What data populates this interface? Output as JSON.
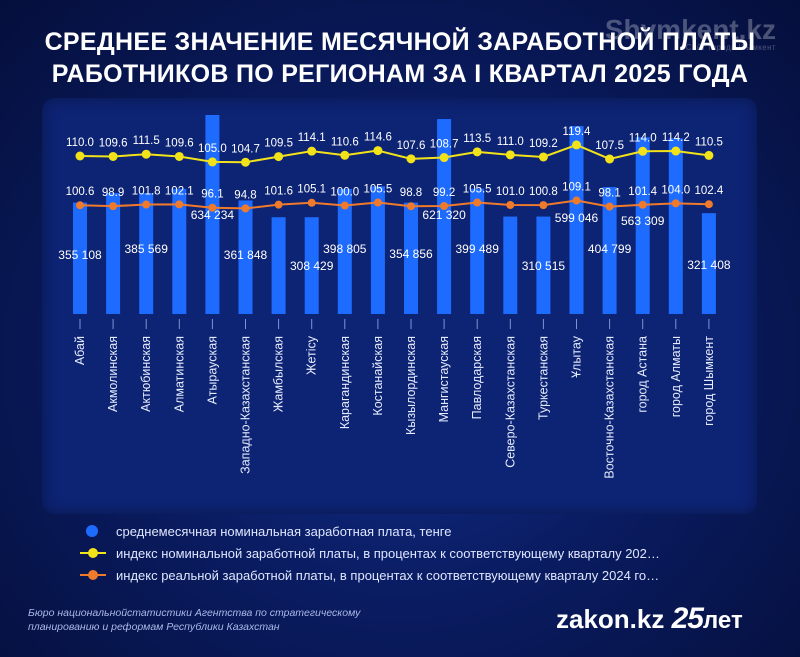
{
  "title": {
    "line1": "СРЕДНЕЕ ЗНАЧЕНИЕ МЕСЯЧНОЙ ЗАРАБОТНОЙ ПЛАТЫ",
    "line2": "РАБОТНИКОВ ПО РЕГИОНАМ ЗА I КВАРТАЛ 2025 ГОДА"
  },
  "watermark": {
    "brand": "Shymkent.kz",
    "sub": "Сайт города Шымкент"
  },
  "colors": {
    "bar": "#1e6cff",
    "nominal_line": "#f2e21a",
    "real_line": "#f07a2c",
    "label": "#ffffff"
  },
  "chart_data": {
    "type": "bar",
    "categories": [
      "Абай",
      "Акмолинская",
      "Актюбинская",
      "Алматинская",
      "Атырауская",
      "Западно-Казахстанская",
      "Жамбылская",
      "Жетісу",
      "Карагандинская",
      "Костанайская",
      "Кызылординская",
      "Мангистауская",
      "Павлодарская",
      "Северо-Казахстанская",
      "Туркестанская",
      "Ұлытау",
      "Восточно-Казахстанская",
      "город Астана",
      "город Алматы",
      "город Шымкент"
    ],
    "series": [
      {
        "name": "среднемесячная номинальная заработная плата, тенге",
        "type": "bar",
        "values": [
          355108,
          385569,
          385569,
          399000,
          634234,
          361848,
          308429,
          308429,
          398805,
          407000,
          354856,
          621320,
          399489,
          310515,
          310515,
          599046,
          404799,
          563309,
          560000,
          321408
        ],
        "labels": [
          "355 108",
          "",
          "385 569",
          "",
          "634 234",
          "361 848",
          "",
          "308 429",
          "398 805",
          "",
          "354 856",
          "621 320",
          "399 489",
          "",
          "310 515",
          "599 046",
          "404 799",
          "563 309",
          "",
          "321 408"
        ]
      },
      {
        "name": "индекс номинальной заработной платы, в процентах к соответствующему кварталу 202…",
        "type": "line",
        "values": [
          110.0,
          109.6,
          111.5,
          109.6,
          105.0,
          104.7,
          109.5,
          114.1,
          110.6,
          114.6,
          107.6,
          108.7,
          113.5,
          111.0,
          109.2,
          119.4,
          107.5,
          114.0,
          114.2,
          110.5
        ],
        "labels": [
          "110.0",
          "109.6",
          "111.5",
          "109.6",
          "105.0",
          "104.7",
          "109.5",
          "114.1",
          "110.6",
          "114.6",
          "107.6",
          "108.7",
          "113.5",
          "111.0",
          "109.2",
          "119.4",
          "107.5",
          "114.0",
          "114.2",
          "110.5"
        ]
      },
      {
        "name": "индекс реальной заработной платы, в процентах к соответствующему кварталу 2024 го…",
        "type": "line",
        "values": [
          100.6,
          98.9,
          101.8,
          102.1,
          96.1,
          94.8,
          101.6,
          105.1,
          100.0,
          105.5,
          98.8,
          99.2,
          105.5,
          101.0,
          100.8,
          109.1,
          98.1,
          101.4,
          104.0,
          102.4
        ],
        "labels": [
          "100.6",
          "98.9",
          "101.8",
          "102.1",
          "96.1",
          "94.8",
          "101.6",
          "105.1",
          "100.0",
          "105.5",
          "98.8",
          "99.2",
          "105.5",
          "101.0",
          "100.8",
          "109.1",
          "98.1",
          "101.4",
          "104.0",
          "102.4"
        ]
      }
    ],
    "ylim": [
      0,
      634234
    ]
  },
  "legend": {
    "items": [
      "среднемесячная номинальная заработная плата, тенге",
      "индекс номинальной заработной платы, в процентах к соответствующему кварталу 202…",
      "индекс реальной заработной платы, в процентах к соответствующему кварталу 2024 го…"
    ]
  },
  "source": {
    "line1": "Бюро национальнойстатистики Агентства по стратегическому",
    "line2": "планированию и реформам Республики Казахстан"
  },
  "logo": {
    "text": "zakon.kz",
    "number": "25",
    "suffix": "лет"
  }
}
